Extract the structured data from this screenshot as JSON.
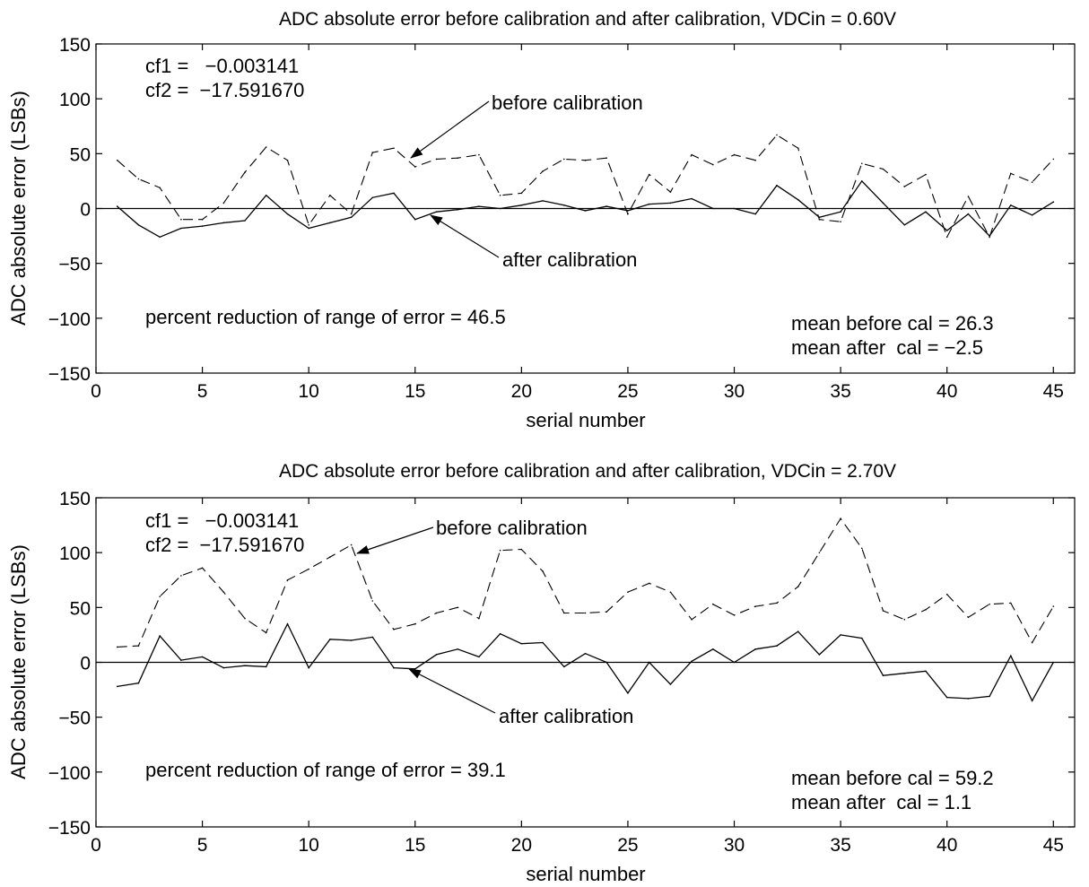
{
  "chart_data": [
    {
      "type": "line",
      "title": "ADC absolute error before calibration and after calibration, VDCin = 0.60V",
      "xlabel": "serial number",
      "ylabel": "ADC absolute error (LSBs)",
      "xlim": [
        0,
        46
      ],
      "ylim": [
        -150,
        150
      ],
      "xticks": [
        0,
        5,
        10,
        15,
        20,
        25,
        30,
        35,
        40,
        45
      ],
      "yticks": [
        150,
        100,
        50,
        0,
        -50,
        -100,
        -150
      ],
      "grid": false,
      "x": [
        1,
        2,
        3,
        4,
        5,
        6,
        7,
        8,
        9,
        10,
        11,
        12,
        13,
        14,
        15,
        16,
        17,
        18,
        19,
        20,
        21,
        22,
        23,
        24,
        25,
        26,
        27,
        28,
        29,
        30,
        31,
        32,
        33,
        34,
        35,
        36,
        37,
        38,
        39,
        40,
        41,
        42,
        43,
        44,
        45
      ],
      "series": [
        {
          "name": "before calibration",
          "style": "dashed",
          "values": [
            44,
            27,
            19,
            -10,
            -10,
            5,
            33,
            56,
            44,
            -15,
            12,
            -5,
            51,
            55,
            38,
            45,
            46,
            49,
            12,
            14,
            34,
            45,
            44,
            46,
            -5,
            31,
            15,
            49,
            40,
            49,
            44,
            67,
            55,
            -10,
            -12,
            41,
            36,
            20,
            31,
            -26,
            11,
            -26,
            32,
            24,
            45
          ]
        },
        {
          "name": "after calibration",
          "style": "solid",
          "values": [
            2,
            -15,
            -26,
            -18,
            -16,
            -13,
            -11,
            12,
            -5,
            -18,
            -13,
            -8,
            10,
            14,
            -10,
            -3,
            -1,
            2,
            0,
            3,
            7,
            3,
            -2,
            2,
            -2,
            4,
            5,
            9,
            0,
            0,
            -5,
            21,
            8,
            -8,
            -3,
            25,
            5,
            -15,
            -3,
            -20,
            -5,
            -25,
            3,
            -6,
            6
          ]
        }
      ],
      "annotations": {
        "cf1": "cf1 =   −0.003141",
        "cf2": "cf2 =  −17.591670",
        "before_label": "before calibration",
        "after_label": "after calibration",
        "reduction": "percent reduction of range of error = 46.5",
        "mean_before": "mean before cal = 26.3",
        "mean_after": "mean after  cal = −2.5"
      }
    },
    {
      "type": "line",
      "title": "ADC absolute error before calibration and after calibration, VDCin = 2.70V",
      "xlabel": "serial number",
      "ylabel": "ADC absolute error (LSBs)",
      "xlim": [
        0,
        46
      ],
      "ylim": [
        -150,
        150
      ],
      "xticks": [
        0,
        5,
        10,
        15,
        20,
        25,
        30,
        35,
        40,
        45
      ],
      "yticks": [
        150,
        100,
        50,
        0,
        -50,
        -100,
        -150
      ],
      "grid": false,
      "x": [
        1,
        2,
        3,
        4,
        5,
        6,
        7,
        8,
        9,
        10,
        11,
        12,
        13,
        14,
        15,
        16,
        17,
        18,
        19,
        20,
        21,
        22,
        23,
        24,
        25,
        26,
        27,
        28,
        29,
        30,
        31,
        32,
        33,
        34,
        35,
        36,
        37,
        38,
        39,
        40,
        41,
        42,
        43,
        44,
        45
      ],
      "series": [
        {
          "name": "before calibration",
          "style": "dashed",
          "values": [
            14,
            15,
            60,
            79,
            86,
            64,
            40,
            27,
            75,
            85,
            96,
            107,
            56,
            30,
            35,
            45,
            50,
            40,
            102,
            103,
            83,
            45,
            45,
            46,
            64,
            72,
            64,
            39,
            53,
            43,
            51,
            54,
            69,
            100,
            131,
            104,
            47,
            39,
            48,
            62,
            41,
            53,
            54,
            18,
            51
          ]
        },
        {
          "name": "after calibration",
          "style": "solid",
          "values": [
            -22,
            -19,
            24,
            2,
            5,
            -5,
            -3,
            -4,
            35,
            -5,
            21,
            20,
            23,
            -5,
            -6,
            7,
            12,
            5,
            26,
            17,
            18,
            -4,
            8,
            0,
            -28,
            0,
            -20,
            1,
            12,
            0,
            12,
            15,
            28,
            7,
            25,
            22,
            -12,
            -10,
            -8,
            -32,
            -33,
            -31,
            6,
            -35,
            0
          ]
        }
      ],
      "annotations": {
        "cf1": "cf1 =   −0.003141",
        "cf2": "cf2 =  −17.591670",
        "before_label": "before calibration",
        "after_label": "after calibration",
        "reduction": "percent reduction of range of error = 39.1",
        "mean_before": "mean before cal = 59.2",
        "mean_after": "mean after  cal = 1.1"
      }
    }
  ]
}
